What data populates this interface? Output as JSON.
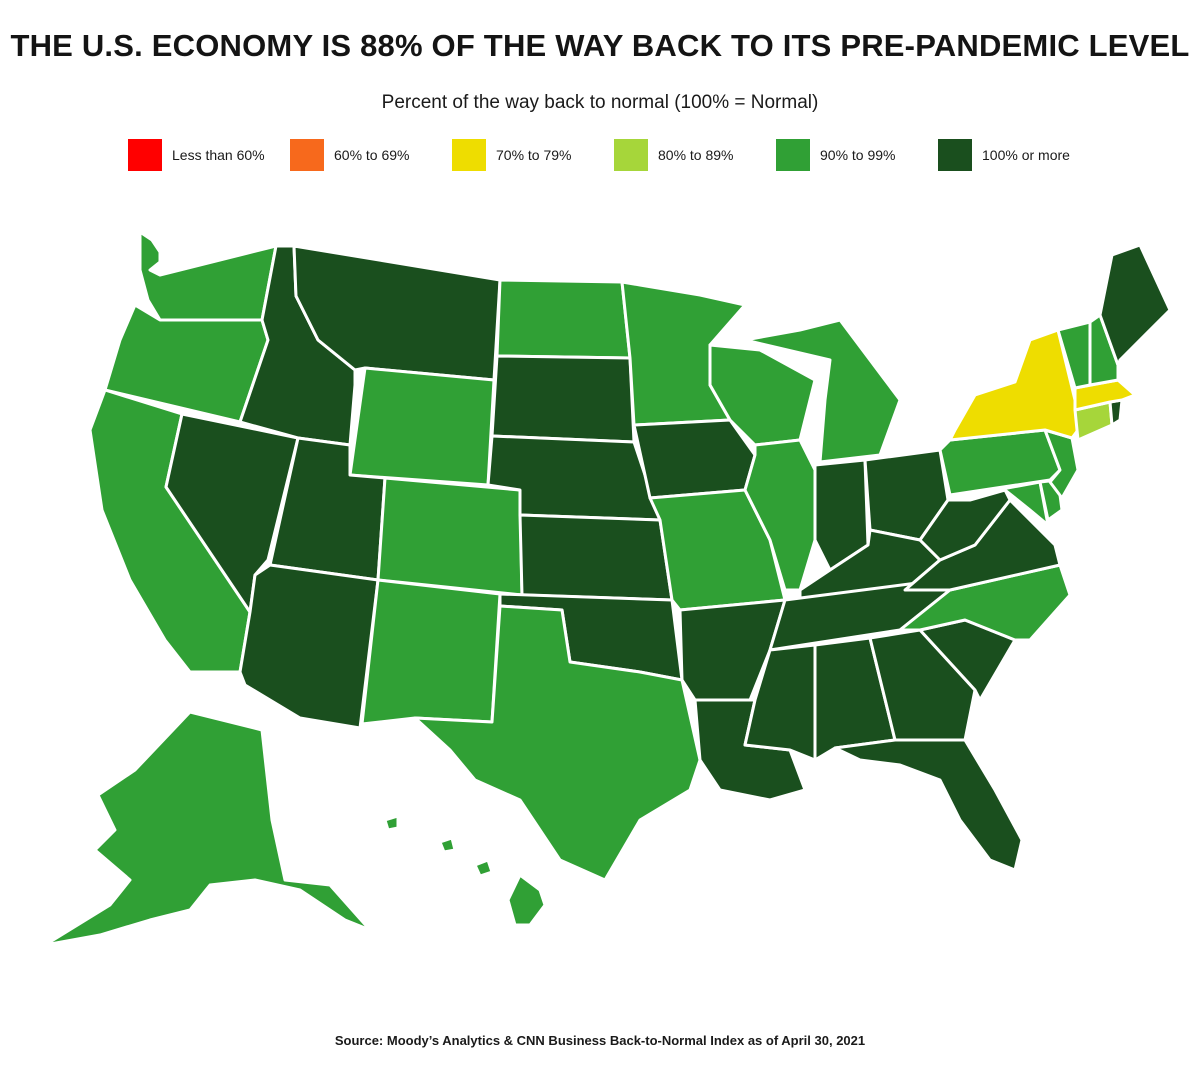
{
  "title": "THE U.S. ECONOMY IS 88% OF THE WAY BACK TO ITS PRE-PANDEMIC LEVEL",
  "subtitle": "Percent of the way back to normal (100% = Normal)",
  "source": "Source: Moody’s Analytics & CNN Business Back-to-Normal Index as of April 30, 2021",
  "legend": [
    {
      "label": "Less than 60%",
      "color": "#ff0000"
    },
    {
      "label": "60% to 69%",
      "color": "#f7691c"
    },
    {
      "label": "70% to 79%",
      "color": "#eedd00"
    },
    {
      "label": "80% to 89%",
      "color": "#a6d63a"
    },
    {
      "label": "90% to 99%",
      "color": "#30a035"
    },
    {
      "label": "100% or more",
      "color": "#1a4f1e"
    }
  ],
  "categories": {
    "WA": "90% to 99%",
    "OR": "90% to 99%",
    "CA": "90% to 99%",
    "NV": "100% or more",
    "ID": "100% or more",
    "MT": "100% or more",
    "WY": "90% to 99%",
    "UT": "100% or more",
    "AZ": "100% or more",
    "CO": "90% to 99%",
    "NM": "90% to 99%",
    "ND": "90% to 99%",
    "SD": "100% or more",
    "NE": "100% or more",
    "KS": "100% or more",
    "OK": "100% or more",
    "TX": "90% to 99%",
    "MN": "90% to 99%",
    "IA": "100% or more",
    "MO": "90% to 99%",
    "AR": "100% or more",
    "LA": "100% or more",
    "WI": "90% to 99%",
    "IL": "90% to 99%",
    "MI": "90% to 99%",
    "IN": "100% or more",
    "OH": "100% or more",
    "KY": "100% or more",
    "TN": "100% or more",
    "MS": "100% or more",
    "AL": "100% or more",
    "GA": "100% or more",
    "FL": "100% or more",
    "SC": "100% or more",
    "NC": "90% to 99%",
    "VA": "100% or more",
    "WV": "100% or more",
    "MD": "90% to 99%",
    "DE": "90% to 99%",
    "PA": "90% to 99%",
    "NJ": "90% to 99%",
    "NY": "70% to 79%",
    "CT": "80% to 89%",
    "RI": "100% or more",
    "MA": "70% to 79%",
    "VT": "90% to 99%",
    "NH": "90% to 99%",
    "ME": "100% or more",
    "AK": "90% to 99%",
    "HI": "90% to 99%"
  }
}
